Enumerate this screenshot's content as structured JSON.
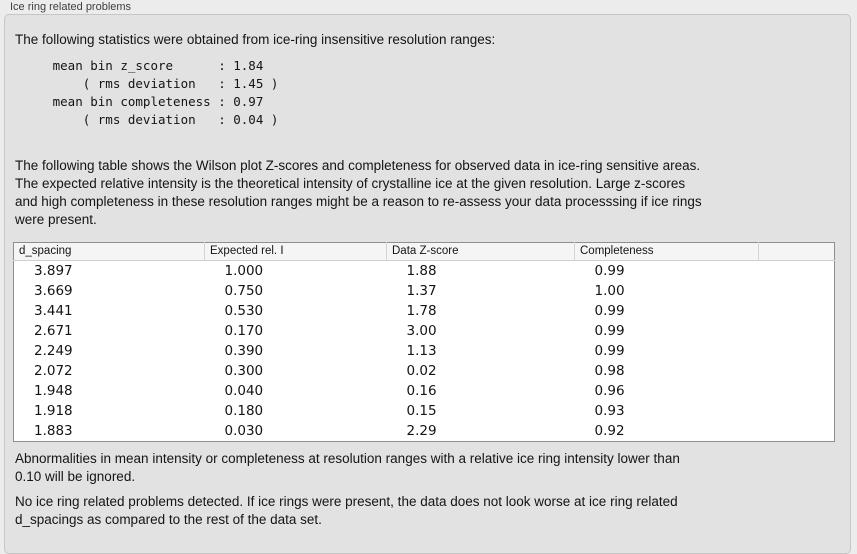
{
  "panel": {
    "title": "Ice ring related problems"
  },
  "colors": {
    "outer_background": "#ececec",
    "groupbox_background": "#e2e2e2",
    "table_background": "#ffffff",
    "table_header_background": "#f5f5f5",
    "text": "#141414"
  },
  "statistics": {
    "intro": "The following statistics were obtained from ice-ring insensitive resolution ranges:",
    "block": "     mean bin z_score      : 1.84\n         ( rms deviation   : 1.45 )\n     mean bin completeness : 0.97\n         ( rms deviation   : 0.04 )",
    "mean_bin_z_score": "1.84",
    "z_score_rms_deviation": "1.45",
    "mean_bin_completeness": "0.97",
    "completeness_rms_deviation": "0.04"
  },
  "table_section": {
    "intro": "The following table shows the Wilson plot Z-scores and completeness for observed data in ice-ring sensitive areas.\nThe expected relative intensity is the theoretical intensity of crystalline ice at the given resolution. Large z-scores\nand high completeness in these resolution ranges might be a reason to re-assess your data processsing if ice rings\nwere present.",
    "columns": [
      "d_spacing",
      "Expected rel. I",
      "Data Z-score",
      "Completeness",
      ""
    ],
    "rows": [
      [
        "3.897",
        "1.000",
        "1.88",
        "0.99"
      ],
      [
        "3.669",
        "0.750",
        "1.37",
        "1.00"
      ],
      [
        "3.441",
        "0.530",
        "1.78",
        "0.99"
      ],
      [
        "2.671",
        "0.170",
        "3.00",
        "0.99"
      ],
      [
        "2.249",
        "0.390",
        "1.13",
        "0.99"
      ],
      [
        "2.072",
        "0.300",
        "0.02",
        "0.98"
      ],
      [
        "1.948",
        "0.040",
        "0.16",
        "0.96"
      ],
      [
        "1.918",
        "0.180",
        "0.15",
        "0.93"
      ],
      [
        "1.883",
        "0.030",
        "2.29",
        "0.92"
      ]
    ]
  },
  "footer": {
    "ignore_note": "Abnormalities in mean intensity or completeness at resolution ranges with a relative ice ring intensity lower than\n0.10 will be ignored.",
    "conclusion": "No ice ring related problems detected. If ice rings were present, the data does not look worse at ice ring related\nd_spacings as compared to the rest of the data set."
  }
}
